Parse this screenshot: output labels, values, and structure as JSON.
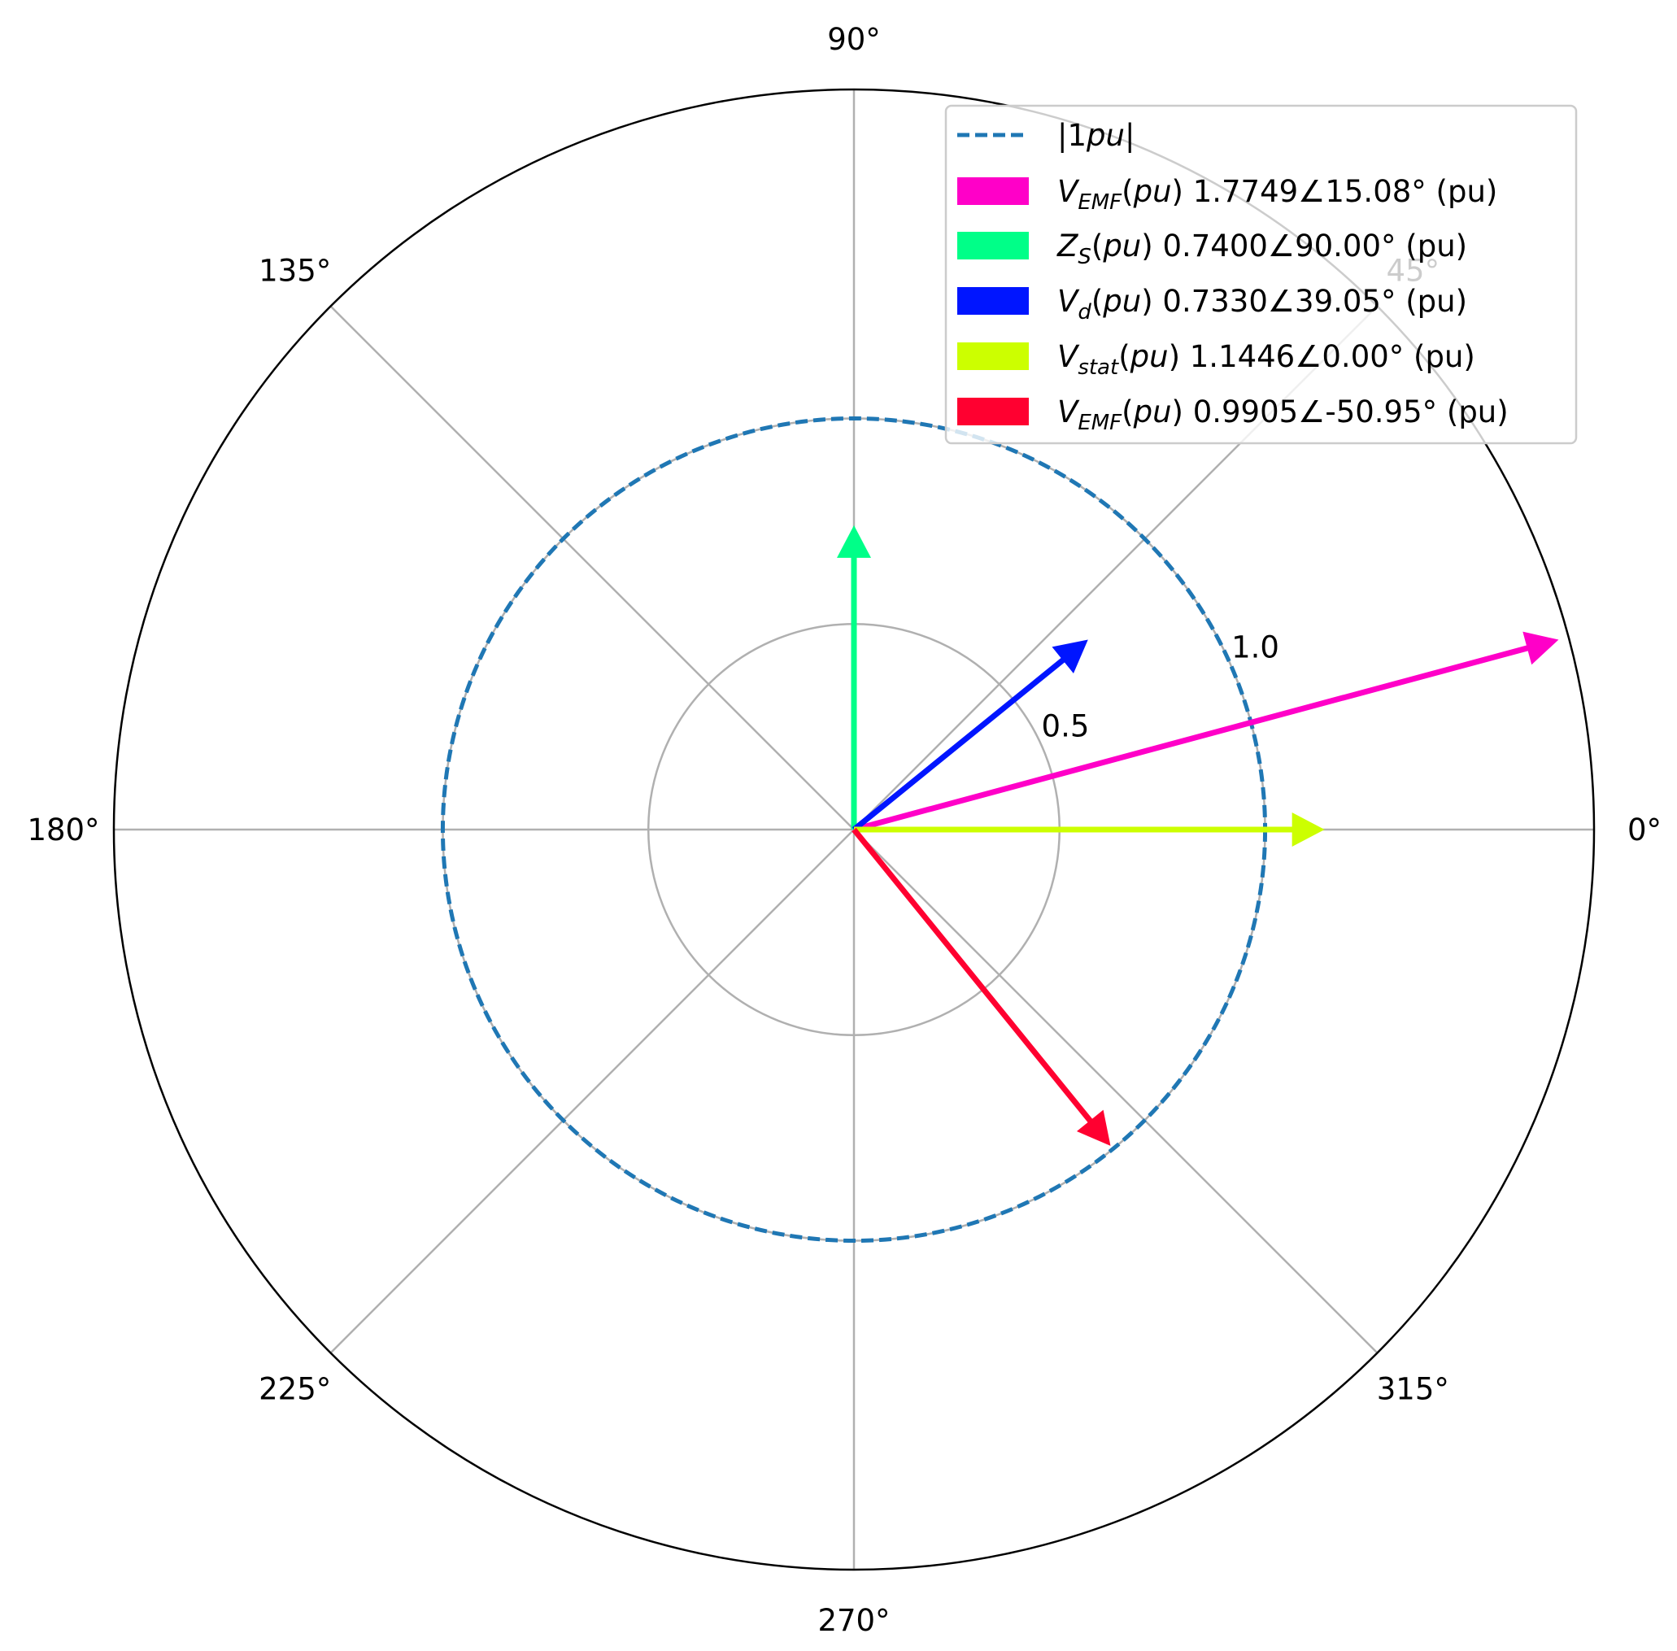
{
  "chart_data": {
    "type": "polar",
    "title": "",
    "r_max": 1.8,
    "radial_ticks": [
      {
        "value": 0.5,
        "label": "0.5"
      },
      {
        "value": 1.0,
        "label": "1.0"
      }
    ],
    "angle_ticks": [
      {
        "angle": 0,
        "label": "0°"
      },
      {
        "angle": 45,
        "label": "45°"
      },
      {
        "angle": 90,
        "label": "90°"
      },
      {
        "angle": 135,
        "label": "135°"
      },
      {
        "angle": 180,
        "label": "180°"
      },
      {
        "angle": 225,
        "label": "225°"
      },
      {
        "angle": 270,
        "label": "270°"
      },
      {
        "angle": 315,
        "label": "315°"
      }
    ],
    "grid": true,
    "legend_placement": "top-right",
    "reference_circle": {
      "radius": 1.0,
      "style": "dashed",
      "color": "#1f77b4",
      "legend": {
        "symbol": "|1",
        "italic": "pu",
        "after": "|"
      }
    },
    "series": [
      {
        "magnitude": 1.7749,
        "angle": 15.08,
        "color": "#ff00c8",
        "legend": {
          "sym": "V",
          "sub": "EMF",
          "arg": "pu",
          "text": " 1.7749∠15.08° (pu)"
        }
      },
      {
        "magnitude": 0.74,
        "angle": 90.0,
        "color": "#00ff88",
        "legend": {
          "sym": "Z",
          "sub": "S",
          "arg": "pu",
          "text": " 0.7400∠90.00° (pu)"
        }
      },
      {
        "magnitude": 0.733,
        "angle": 39.05,
        "color": "#0015ff",
        "legend": {
          "sym": "V",
          "sub": "d",
          "arg": "pu",
          "text": " 0.7330∠39.05° (pu)"
        }
      },
      {
        "magnitude": 1.1446,
        "angle": 0.0,
        "color": "#ccff00",
        "legend": {
          "sym": "V",
          "sub": "stat",
          "arg": "pu",
          "text": " 1.1446∠0.00° (pu)"
        }
      },
      {
        "magnitude": 0.9905,
        "angle": -50.95,
        "color": "#ff0030",
        "legend": {
          "sym": "V",
          "sub": "EMF",
          "arg": "pu",
          "text": " 0.9905∠-50.95° (pu)"
        }
      }
    ]
  }
}
